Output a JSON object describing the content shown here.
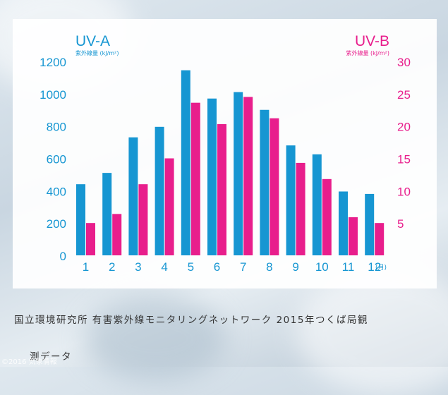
{
  "chart_data": {
    "type": "bar",
    "categories": [
      "1",
      "2",
      "3",
      "4",
      "5",
      "6",
      "7",
      "8",
      "9",
      "10",
      "11",
      "12"
    ],
    "month_unit": "(月)",
    "series": [
      {
        "name": "UV-A",
        "unit_label": "紫外線量 (kJ/m²)",
        "color": "#1696d2",
        "axis": "left",
        "values": [
          440,
          510,
          730,
          795,
          1145,
          970,
          1010,
          900,
          680,
          625,
          395,
          380
        ]
      },
      {
        "name": "UV-B",
        "unit_label": "紫外線量 (kJ/m²)",
        "color": "#e81e8c",
        "axis": "right",
        "values": [
          5,
          6.4,
          11,
          15,
          23.6,
          20.3,
          24.5,
          21.2,
          14.3,
          11.8,
          5.9,
          5
        ]
      }
    ],
    "left_axis": {
      "ylim": [
        0,
        1200
      ],
      "ticks": [
        "0",
        "200",
        "400",
        "600",
        "800",
        "1000",
        "1200"
      ]
    },
    "right_axis": {
      "ylim": [
        0,
        30
      ],
      "ticks": [
        "5",
        "10",
        "15",
        "20",
        "25",
        "30"
      ]
    }
  },
  "caption": "国立環境研究所 有害紫外線モニタリングネットワーク 2015年つくば局観",
  "caption_cont": "測データ",
  "watermark": "©2016 気象情報"
}
